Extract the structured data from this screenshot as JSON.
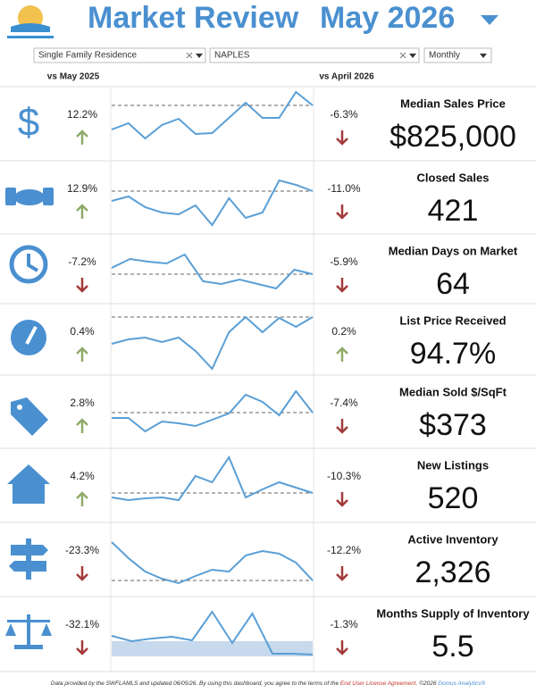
{
  "header": {
    "title_left": "Market Review",
    "title_right": "May 2026",
    "filters": [
      "Single Family Residence",
      "NAPLES",
      "Monthly"
    ],
    "col_left": "vs May 2025",
    "col_right": "vs April 2026"
  },
  "metrics": [
    {
      "name": "Median Sales Price",
      "value": "$825,000",
      "vs_year": "12.2%",
      "vs_year_dir": "up",
      "vs_month": "-6.3%",
      "vs_month_dir": "down",
      "trend": [
        15,
        22,
        5,
        20,
        27,
        10,
        11,
        28,
        45,
        28,
        28,
        57,
        42
      ],
      "reference": 42
    },
    {
      "name": "Closed Sales",
      "value": "421",
      "vs_year": "12.9%",
      "vs_year_dir": "up",
      "vs_month": "-11.0%",
      "vs_month_dir": "down",
      "trend": [
        35,
        40,
        28,
        22,
        20,
        30,
        8,
        38,
        16,
        22,
        58,
        53,
        46
      ],
      "reference": 46
    },
    {
      "name": "Median Days on Market",
      "value": "64",
      "vs_year": "-7.2%",
      "vs_year_dir": "down",
      "vs_month": "-5.9%",
      "vs_month_dir": "down",
      "trend": [
        40,
        50,
        47,
        45,
        55,
        25,
        22,
        27,
        22,
        17,
        38,
        33
      ],
      "reference": 33
    },
    {
      "name": "List Price Received",
      "value": "94.7%",
      "vs_year": "0.4%",
      "vs_year_dir": "up",
      "vs_month": "0.2%",
      "vs_month_dir": "up",
      "trend": [
        35,
        40,
        42,
        37,
        42,
        27,
        7,
        48,
        65,
        48,
        64,
        54,
        65
      ],
      "reference": 65
    },
    {
      "name": "Median Sold $/SqFt",
      "value": "$373",
      "vs_year": "2.8%",
      "vs_year_dir": "up",
      "vs_month": "-7.4%",
      "vs_month_dir": "down",
      "trend": [
        32,
        32,
        17,
        28,
        26,
        23,
        30,
        37,
        58,
        50,
        35,
        62,
        38
      ],
      "reference": 38
    },
    {
      "name": "New Listings",
      "value": "520",
      "vs_year": "4.2%",
      "vs_year_dir": "up",
      "vs_month": "-10.3%",
      "vs_month_dir": "down",
      "trend": [
        23,
        20,
        22,
        23,
        20,
        47,
        40,
        68,
        23,
        32,
        40,
        34,
        28
      ],
      "reference": 28
    },
    {
      "name": "Active Inventory",
      "value": "2,326",
      "vs_year": "-23.3%",
      "vs_year_dir": "down",
      "vs_month": "-12.2%",
      "vs_month_dir": "down",
      "trend": [
        63,
        45,
        30,
        22,
        17,
        25,
        32,
        30,
        48,
        53,
        50,
        40,
        20
      ],
      "reference": 20
    },
    {
      "name": "Months Supply of Inventory",
      "value": "5.5",
      "vs_year": "-32.1%",
      "vs_year_dir": "down",
      "vs_month": "-1.3%",
      "vs_month_dir": "down",
      "trend": [
        33,
        27,
        30,
        32,
        28,
        60,
        25,
        58,
        13,
        13,
        12
      ],
      "band": [
        10,
        27
      ]
    }
  ],
  "footer": {
    "text": "Data provided by the SWFLAMLS and updated 06/05/26.  By using this dashboard, you agree to the terms of the ",
    "link": "End User License Agreement",
    "copyright": ". ©2026 ",
    "brand": "Domus Analytics®"
  }
}
